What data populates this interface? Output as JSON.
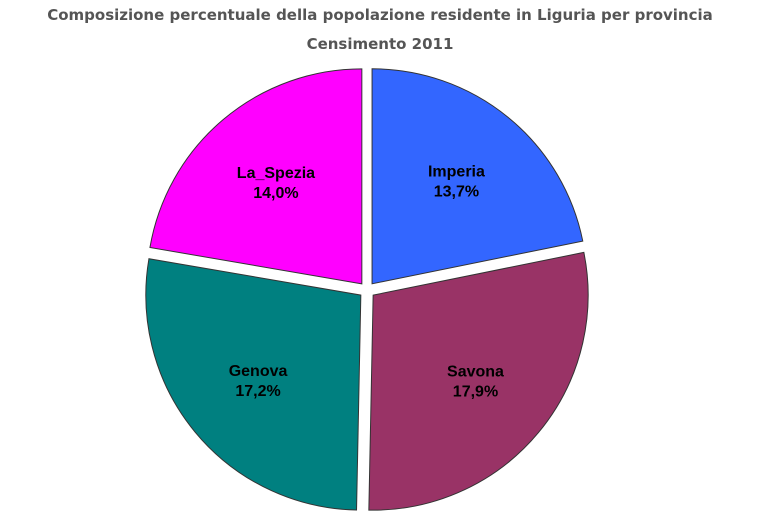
{
  "chart_data": {
    "type": "pie",
    "title": "Composizione percentuale della popolazione residente in Liguria per provincia",
    "subtitle": "Censimento 2011",
    "categories": [
      "Imperia",
      "Savona",
      "Genova",
      "La_Spezia"
    ],
    "values": [
      13.7,
      17.9,
      17.2,
      14.0
    ],
    "value_labels": [
      "13,7%",
      "17,9%",
      "17,2%",
      "14,0%"
    ],
    "colors": [
      "#3366ff",
      "#993366",
      "#008080",
      "#ff00ff"
    ]
  }
}
